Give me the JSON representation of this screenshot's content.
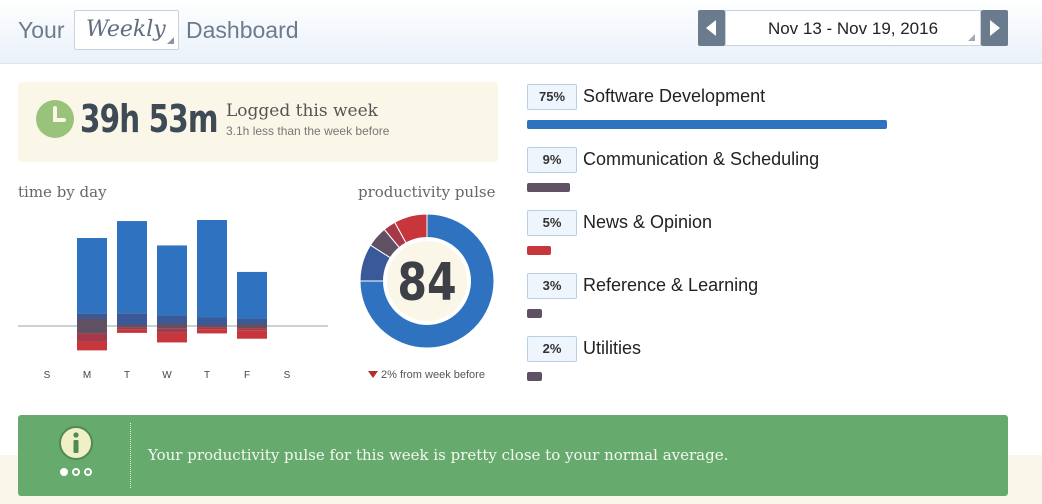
{
  "header": {
    "your": "Your",
    "period": "Weekly",
    "dashboard": "Dashboard",
    "date_range": "Nov 13 - Nov 19, 2016"
  },
  "logged": {
    "time": "39h 53m",
    "label": "Logged this week",
    "sub": "3.1h less than the week before"
  },
  "time_by_day": {
    "title": "time by day",
    "days": [
      "S",
      "M",
      "T",
      "W",
      "T",
      "F",
      "S"
    ]
  },
  "pulse": {
    "title": "productivity pulse",
    "value": "84",
    "note": "2% from week before"
  },
  "categories": [
    {
      "pct": "75%",
      "name": "Software Development",
      "fraction": 0.75,
      "color": "#2f72bf"
    },
    {
      "pct": "9%",
      "name": "Communication & Scheduling",
      "fraction": 0.09,
      "color": "#5f5064"
    },
    {
      "pct": "5%",
      "name": "News & Opinion",
      "fraction": 0.05,
      "color": "#c7363a"
    },
    {
      "pct": "3%",
      "name": "Reference & Learning",
      "fraction": 0.03,
      "color": "#5f5064"
    },
    {
      "pct": "2%",
      "name": "Utilities",
      "fraction": 0.02,
      "color": "#5f5064"
    }
  ],
  "banner": {
    "message": "Your productivity pulse for this week is pretty close to your normal average."
  },
  "colors": {
    "very_productive": "#2f72bf",
    "productive": "#3a5998",
    "neutral": "#5f5064",
    "distracting": "#a5394a",
    "very_distracting": "#c7363a",
    "banner": "#66aa6e"
  },
  "chart_data": {
    "type": "bar",
    "categories": [
      "S",
      "M",
      "T",
      "W",
      "T",
      "F",
      "S"
    ],
    "series": [
      {
        "values": [
          0,
          7.1,
          8.7,
          6.6,
          9.2,
          4.4,
          0
        ]
      },
      {
        "values": [
          0,
          1.2,
          1.2,
          1.0,
          0.8,
          0.7,
          0
        ]
      },
      {
        "values": [
          0,
          1.4,
          0.3,
          0.5,
          0.2,
          0.4,
          0
        ]
      },
      {
        "values": [
          0,
          0.8,
          0.2,
          0.4,
          0.2,
          0.2,
          0
        ]
      },
      {
        "values": [
          0,
          0.8,
          0.3,
          0.9,
          0.4,
          0.8,
          0
        ]
      }
    ],
    "pulse_value": 84
  }
}
